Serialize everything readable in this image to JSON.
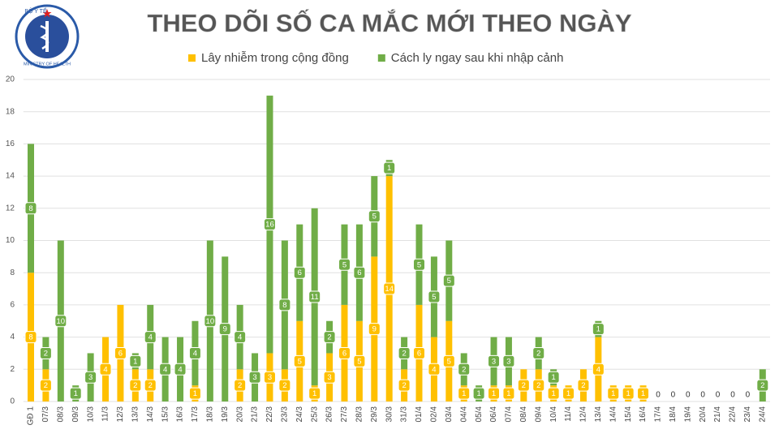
{
  "logo": {
    "top": "BỘ Y TẾ",
    "bottom": "MINISTRY OF HEALTH"
  },
  "chart_data": {
    "type": "stacked_bar",
    "title": "THEO DÕI SỐ CA MẮC MỚI THEO NGÀY",
    "categories": [
      "GĐ 1",
      "07/3",
      "08/3",
      "09/3",
      "10/3",
      "11/3",
      "12/3",
      "13/3",
      "14/3",
      "15/3",
      "16/3",
      "17/3",
      "18/3",
      "19/3",
      "20/3",
      "21/3",
      "22/3",
      "23/3",
      "24/3",
      "25/3",
      "26/3",
      "27/3",
      "28/3",
      "29/3",
      "30/3",
      "31/3",
      "01/4",
      "02/4",
      "03/4",
      "04/4",
      "05/4",
      "06/4",
      "07/4",
      "08/4",
      "09/4",
      "10/4",
      "11/4",
      "12/4",
      "13/4",
      "14/4",
      "15/4",
      "16/4",
      "17/4",
      "18/4",
      "19/4",
      "20/4",
      "21/4",
      "22/4",
      "23/4",
      "24/4"
    ],
    "series": [
      {
        "name": "Lây nhiễm trong cộng đồng",
        "color": "#ffc000",
        "values": [
          8,
          2,
          0,
          0,
          0,
          4,
          6,
          2,
          2,
          0,
          0,
          1,
          0,
          0,
          2,
          0,
          3,
          2,
          5,
          1,
          3,
          6,
          5,
          9,
          14,
          2,
          6,
          4,
          5,
          1,
          0,
          1,
          1,
          2,
          2,
          1,
          1,
          2,
          4,
          1,
          1,
          1,
          0,
          0,
          0,
          0,
          0,
          0,
          0,
          0
        ]
      },
      {
        "name": "Cách ly ngay sau khi nhập cảnh",
        "color": "#70ad47",
        "values": [
          8,
          2,
          10,
          1,
          3,
          0,
          0,
          1,
          4,
          4,
          4,
          4,
          10,
          9,
          4,
          3,
          16,
          8,
          6,
          11,
          2,
          5,
          6,
          5,
          1,
          2,
          5,
          5,
          5,
          2,
          1,
          3,
          3,
          0,
          2,
          1,
          0,
          0,
          1,
          0,
          0,
          0,
          0,
          0,
          0,
          0,
          0,
          0,
          0,
          2
        ]
      }
    ],
    "ylim": [
      0,
      20
    ],
    "yticks": [
      0,
      2,
      4,
      6,
      8,
      10,
      12,
      14,
      16,
      18,
      20
    ],
    "grid": true,
    "legend": "top"
  }
}
